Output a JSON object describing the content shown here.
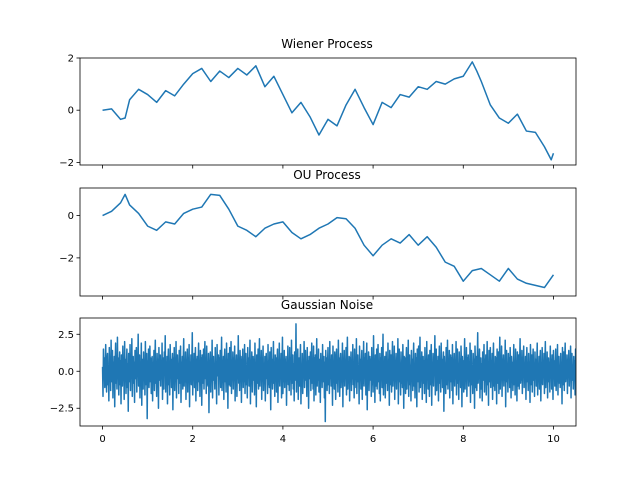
{
  "chart_data": [
    {
      "type": "line",
      "title": "Wiener Process",
      "xlabel": "",
      "ylabel": "",
      "xlim": [
        -0.5,
        10.5
      ],
      "ylim": [
        -2.1,
        2.0
      ],
      "xticks": [
        0,
        2,
        4,
        6,
        8,
        10
      ],
      "yticks": [
        -2,
        0,
        2
      ],
      "ytick_labels": [
        "−2",
        "0",
        "2"
      ],
      "show_xtick_labels": false,
      "grid": false,
      "color": "#1f77b4",
      "x": [
        0,
        0.2,
        0.4,
        0.5,
        0.6,
        0.8,
        1.0,
        1.2,
        1.4,
        1.6,
        1.8,
        2.0,
        2.2,
        2.4,
        2.6,
        2.8,
        3.0,
        3.2,
        3.4,
        3.6,
        3.8,
        4.0,
        4.2,
        4.4,
        4.6,
        4.8,
        5.0,
        5.2,
        5.4,
        5.6,
        5.8,
        6.0,
        6.2,
        6.4,
        6.6,
        6.8,
        7.0,
        7.2,
        7.4,
        7.6,
        7.8,
        8.0,
        8.2,
        8.3,
        8.4,
        8.6,
        8.8,
        9.0,
        9.2,
        9.4,
        9.6,
        9.8,
        9.95,
        10.0
      ],
      "y": [
        0.0,
        0.05,
        -0.35,
        -0.3,
        0.4,
        0.8,
        0.6,
        0.3,
        0.75,
        0.55,
        1.0,
        1.4,
        1.6,
        1.1,
        1.5,
        1.25,
        1.6,
        1.35,
        1.7,
        0.9,
        1.3,
        0.6,
        -0.1,
        0.3,
        -0.25,
        -0.95,
        -0.35,
        -0.6,
        0.2,
        0.8,
        0.1,
        -0.55,
        0.3,
        0.1,
        0.6,
        0.5,
        0.9,
        0.8,
        1.1,
        1.0,
        1.2,
        1.3,
        1.85,
        1.5,
        1.1,
        0.2,
        -0.3,
        -0.5,
        -0.15,
        -0.8,
        -0.85,
        -1.4,
        -1.9,
        -1.65
      ]
    },
    {
      "type": "line",
      "title": "OU Process",
      "xlabel": "",
      "ylabel": "",
      "xlim": [
        -0.5,
        10.5
      ],
      "ylim": [
        -3.8,
        1.3
      ],
      "xticks": [
        0,
        2,
        4,
        6,
        8,
        10
      ],
      "yticks": [
        -2,
        0
      ],
      "ytick_labels": [
        "−2",
        "0"
      ],
      "show_xtick_labels": false,
      "grid": false,
      "color": "#1f77b4",
      "x": [
        0,
        0.2,
        0.4,
        0.5,
        0.6,
        0.8,
        1.0,
        1.2,
        1.4,
        1.6,
        1.8,
        2.0,
        2.2,
        2.4,
        2.6,
        2.8,
        3.0,
        3.2,
        3.4,
        3.6,
        3.8,
        4.0,
        4.2,
        4.4,
        4.6,
        4.8,
        5.0,
        5.2,
        5.4,
        5.6,
        5.8,
        6.0,
        6.2,
        6.4,
        6.6,
        6.8,
        7.0,
        7.2,
        7.4,
        7.6,
        7.8,
        8.0,
        8.2,
        8.4,
        8.6,
        8.8,
        9.0,
        9.2,
        9.4,
        9.6,
        9.8,
        10.0
      ],
      "y": [
        0.0,
        0.2,
        0.6,
        1.0,
        0.5,
        0.1,
        -0.5,
        -0.7,
        -0.3,
        -0.4,
        0.1,
        0.3,
        0.4,
        1.0,
        0.95,
        0.3,
        -0.5,
        -0.7,
        -1.0,
        -0.6,
        -0.4,
        -0.3,
        -0.8,
        -1.1,
        -0.9,
        -0.6,
        -0.4,
        -0.1,
        -0.15,
        -0.6,
        -1.4,
        -1.9,
        -1.4,
        -1.1,
        -1.3,
        -0.9,
        -1.4,
        -1.0,
        -1.5,
        -2.2,
        -2.4,
        -3.1,
        -2.6,
        -2.5,
        -2.8,
        -3.1,
        -2.5,
        -3.0,
        -3.2,
        -3.3,
        -3.4,
        -2.8
      ]
    },
    {
      "type": "line",
      "title": "Gaussian Noise",
      "xlabel": "",
      "ylabel": "",
      "xlim": [
        -0.5,
        10.5
      ],
      "ylim": [
        -3.7,
        3.6
      ],
      "xticks": [
        0,
        2,
        4,
        6,
        8,
        10
      ],
      "xtick_labels": [
        "0",
        "2",
        "4",
        "6",
        "8",
        "10"
      ],
      "yticks": [
        -2.5,
        0.0,
        2.5
      ],
      "ytick_labels": [
        "−2.5",
        "0.0",
        "2.5"
      ],
      "show_xtick_labels": true,
      "grid": false,
      "color": "#1f77b4",
      "x_start": 0,
      "x_step": 0.01,
      "y": [
        0.3,
        -1.7,
        1.5,
        -0.4,
        0.9,
        -1.1,
        0.2,
        1.8,
        -0.6,
        -1.4,
        0.7,
        1.2,
        -0.9,
        0.4,
        -2.0,
        1.6,
        -0.2,
        0.8,
        -1.3,
        2.1,
        -0.7,
        0.1,
        1.4,
        -1.8,
        0.6,
        -0.3,
        1.0,
        -2.4,
        0.5,
        1.9,
        -0.8,
        0.3,
        -1.2,
        2.3,
        -0.5,
        0.9,
        -1.6,
        0.2,
        1.3,
        -0.9,
        0.7,
        -2.2,
        1.1,
        0.4,
        -1.0,
        1.7,
        -0.4,
        0.6,
        -1.9,
        2.0,
        -0.6,
        0.8,
        -1.5,
        0.3,
        1.5,
        -1.1,
        0.5,
        -2.7,
        1.2,
        0.1,
        -0.7,
        1.8,
        -1.3,
        0.9,
        -0.2,
        2.2,
        -1.7,
        0.4,
        1.0,
        -0.8,
        0.6,
        -2.1,
        1.4,
        -0.5,
        0.2,
        1.6,
        -1.4,
        0.7,
        -0.3,
        2.5,
        -1.0,
        0.3,
        1.1,
        -1.8,
        0.5,
        -0.6,
        1.9,
        -2.3,
        0.8,
        0.1,
        -1.2,
        1.3,
        -0.4,
        0.6,
        -1.6,
        2.0,
        -0.9,
        0.4,
        1.2,
        -3.2,
        0.7,
        -0.2,
        1.5,
        -1.1,
        0.3,
        1.7,
        -0.7,
        0.9,
        -1.5,
        0.2,
        1.0,
        -2.0,
        0.6,
        -0.4,
        1.4,
        -1.3,
        0.5,
        2.1,
        -0.8,
        0.1,
        -1.7,
        1.2,
        -0.3,
        0.8,
        -2.5,
        1.6,
        -0.6,
        0.4,
        1.1,
        -1.0,
        0.7,
        -0.5,
        1.9,
        -1.9,
        0.3,
        0.9,
        -1.2,
        1.3,
        -0.2,
        2.4,
        -1.4,
        0.6,
        -0.7,
        1.0,
        -2.2,
        0.5,
        1.5,
        -0.9,
        0.2,
        -1.6,
        1.8,
        -0.4,
        0.8,
        -1.1,
        0.4,
        1.2,
        -2.6,
        0.9,
        -0.1,
        1.6,
        -1.3,
        0.3,
        -0.6,
        2.0,
        -1.8,
        0.7,
        1.1,
        -0.5,
        0.5,
        -1.5,
        1.4,
        -0.8,
        0.2,
        1.7,
        -2.1,
        0.6,
        -0.3,
        1.0,
        -1.2,
        0.8,
        2.2,
        -1.0,
        0.4,
        -0.7,
        1.3,
        -1.9,
        0.5,
        0.1,
        1.5,
        -1.4,
        0.9,
        -0.2,
        1.8,
        -2.4,
        0.6,
        -0.5,
        1.1,
        -0.9,
        0.3,
        2.6,
        -1.6,
        0.7,
        -0.4,
        1.2,
        -1.1,
        0.4,
        1.6,
        -2.0,
        0.8,
        -0.6,
        1.0,
        -1.3,
        0.2,
        1.9,
        -0.7,
        0.5,
        -1.7,
        1.4,
        -0.3,
        0.9,
        -2.3,
        1.1,
        0.1,
        -0.8,
        1.5,
        -1.2,
        0.6,
        2.0,
        -0.5,
        0.3,
        -1.5,
        1.7,
        -0.9,
        0.4,
        -1.0,
        1.2,
        -2.8,
        0.7,
        0.2,
        1.3,
        -1.4,
        0.5,
        -0.4,
        2.1,
        -1.8,
        0.8,
        1.0,
        -0.6,
        0.3,
        -1.2,
        1.6,
        -0.8,
        0.6,
        -2.2,
        1.8,
        -0.3,
        0.4,
        1.1,
        -1.6,
        0.9,
        -0.5,
        1.4,
        -1.1,
        0.2,
        2.3,
        -1.3,
        0.7,
        -0.2,
        1.0,
        -1.9,
        0.5,
        1.5,
        -0.7,
        0.1,
        -1.4,
        1.9,
        -0.6,
        0.8,
        -2.5,
        1.2,
        0.3,
        -0.9,
        1.6,
        -1.0,
        0.4,
        2.0,
        -1.5,
        0.6,
        -0.4,
        1.3,
        -1.2,
        0.9,
        -0.3,
        1.7,
        -2.0,
        0.5,
        0.2,
        1.1,
        -1.7,
        0.7,
        -0.5,
        2.4,
        -0.8,
        0.3,
        -1.3,
        1.4,
        -0.6,
        1.0,
        -2.1,
        0.8,
        0.1,
        1.5,
        -1.1,
        0.4,
        -0.7,
        1.8,
        -1.5,
        0.6,
        1.2,
        -0.9,
        0.2,
        -1.8,
        1.6,
        -0.4,
        0.9,
        -1.0,
        0.5,
        2.1,
        -2.2,
        0.7,
        -0.3,
        1.3,
        -1.4,
        0.3,
        1.0,
        -0.6,
        0.8,
        -1.6,
        1.9,
        -0.5,
        0.4,
        -2.4,
        1.1,
        0.6,
        -0.8,
        1.5,
        -1.2,
        0.2,
        2.2,
        -1.0,
        0.5,
        -0.2,
        1.4,
        -1.9,
        0.9,
        0.1,
        1.7,
        -1.3,
        0.4,
        -0.7,
        1.0,
        -2.0,
        0.6,
        1.2,
        -0.5,
        0.3,
        -1.5,
        1.8,
        -0.9,
        0.7,
        -1.1,
        1.3,
        0.2,
        -2.6,
        1.6,
        -0.4,
        0.8,
        -1.2,
        0.5,
        2.0,
        -0.8,
        0.1,
        -1.7,
        1.1,
        -0.3,
        0.9,
        -1.4,
        0.6,
        1.5,
        -2.1,
        0.4,
        -0.6,
        1.9,
        -1.0,
        0.7,
        -0.2,
        1.2,
        -1.8,
        0.3,
        2.3,
        -1.5,
        0.5,
        -0.7,
        1.4,
        -1.1,
        0.8,
        0.2,
        1.0,
        -2.3,
        0.6,
        -0.4,
        1.7,
        -0.9,
        0.4,
        -1.3,
        1.6,
        -0.5,
        0.9,
        -1.6,
        2.1,
        -0.8,
        0.3,
        1.1,
        -1.2,
        0.5,
        -2.0,
        1.3,
        0.1,
        -0.6,
        3.2,
        -1.4,
        0.7,
        -0.3,
        1.5,
        -1.9,
        0.4,
        0.9,
        -1.0,
        0.6,
        1.8,
        -2.2,
        0.2,
        -0.7,
        1.2,
        -1.5,
        0.8,
        -0.4,
        2.0,
        -1.1,
        0.5,
        1.4,
        -0.6,
        0.3,
        -1.7,
        1.6,
        -0.9,
        0.7,
        -2.5,
        1.0,
        0.1,
        -0.5,
        1.3,
        -1.3,
        0.6,
        1.9,
        -0.8,
        0.4,
        -1.2,
        1.7,
        -2.0,
        0.9,
        -0.3,
        1.1,
        -1.6,
        0.2,
        2.2,
        -1.0,
        0.5,
        -0.6,
        1.5,
        -1.4,
        0.3,
        0.8,
        -2.1,
        1.2,
        -0.4,
        0.7,
        -1.1,
        1.8,
        -0.7,
        0.4,
        1.0,
        -1.8,
        0.6,
        -3.4,
        1.4,
        -0.2,
        0.9,
        -1.3,
        0.5,
        1.6,
        -0.9,
        0.3,
        -1.5,
        2.0,
        -0.5,
        0.8,
        -1.0,
        1.1,
        0.2,
        -2.3,
        1.7,
        -0.6,
        0.4,
        -1.2,
        1.3,
        0.7,
        -1.9,
        0.5,
        1.5,
        -0.8,
        0.1,
        -1.4,
        2.1,
        -0.3,
        0.9,
        -1.7,
        0.6,
        1.2,
        -1.1,
        0.3,
        -0.7,
        1.9,
        -2.4,
        0.8,
        0.2,
        1.4,
        -1.0,
        0.5,
        -0.4,
        1.6,
        -1.6,
        0.7,
        2.3,
        -1.2,
        0.4,
        -0.6,
        1.0,
        -2.0,
        0.9,
        0.1,
        1.3,
        -1.3,
        0.6,
        -0.5,
        1.8,
        -0.9,
        0.3,
        -1.8,
        1.5,
        -0.2,
        0.7,
        -1.1,
        2.2,
        -1.5,
        0.5,
        1.1,
        -0.7,
        0.4,
        -2.2,
        1.7,
        -0.4,
        0.8,
        -1.2,
        0.6,
        1.4,
        -1.9,
        0.2,
        -0.8,
        2.0,
        -1.0,
        0.9,
        -0.3,
        1.2,
        -1.6,
        0.5,
        1.9,
        -2.6,
        0.7,
        -0.5,
        1.3,
        -1.3,
        0.3,
        1.0,
        -0.6,
        0.8,
        -1.7,
        1.6,
        -0.9,
        0.4,
        -1.4,
        2.4,
        -0.2,
        0.6,
        -2.1,
        1.1,
        0.1,
        -1.0,
        1.5,
        -1.2,
        0.7,
        1.8,
        -0.7,
        0.5,
        -1.5,
        1.2,
        -2.0,
        0.9,
        -0.4,
        1.6,
        -1.1,
        0.3,
        2.5,
        -1.6,
        0.6,
        -0.3,
        1.0,
        -1.8,
        0.4,
        1.3,
        -0.8,
        0.2,
        -1.3,
        1.9,
        -0.5,
        0.8,
        -2.3,
        1.4,
        0.5,
        -0.9,
        1.1,
        -1.4,
        0.6,
        2.0,
        -1.0,
        0.3,
        -0.6,
        1.7,
        -1.9,
        0.7,
        0.1,
        1.2,
        -1.2,
        0.9,
        -0.4,
        2.2,
        -2.2,
        0.5,
        1.5,
        -0.7,
        0.4,
        -1.6,
        1.3,
        -0.8,
        0.6,
        -1.1,
        1.8,
        0.2,
        -2.5,
        1.0,
        -0.3,
        0.9,
        -1.5,
        0.5,
        1.6,
        -1.2,
        0.3,
        -0.6,
        2.1,
        -1.7,
        0.7,
        1.1,
        -0.9,
        0.4,
        -2.0,
        1.4,
        -0.5,
        0.8,
        -1.3,
        0.6,
        1.9,
        -1.0,
        0.2,
        -1.8,
        1.2,
        -0.4,
        0.9,
        -2.4,
        1.5,
        0.1,
        -0.7,
        1.7,
        -1.4,
        0.5,
        2.3,
        -1.1,
        0.6,
        -0.3,
        1.3,
        -1.9,
        0.4,
        1.0,
        -0.8,
        0.7,
        -1.5,
        1.6,
        -0.6,
        0.3,
        -2.1,
        2.0,
        -0.5,
        0.8,
        -1.2,
        1.1,
        0.2,
        -1.7,
        1.4,
        -0.9,
        0.6,
        1.8,
        -2.3,
        0.5,
        -0.4,
        1.2,
        -1.0,
        0.9,
        -0.2,
        2.4,
        -1.6,
        0.3,
        1.5,
        -1.3,
        0.7,
        -0.6,
        1.0,
        -2.0,
        0.4,
        1.7,
        -0.8,
        0.2,
        -1.4,
        1.9,
        -0.5,
        0.8,
        -1.1,
        0.6,
        1.3,
        -2.7,
        1.0,
        -0.3,
        0.5,
        -1.5,
        1.6,
        0.1,
        -0.9,
        2.1,
        -1.2,
        0.7,
        -0.4,
        1.4,
        -1.8,
        0.3,
        1.1,
        -0.7,
        0.9,
        -1.3,
        1.8,
        -2.2,
        0.5,
        0.2,
        1.2,
        -1.0,
        0.6,
        -0.5,
        2.0,
        -1.6,
        0.4,
        1.5,
        -0.8,
        0.3,
        -1.9,
        1.3,
        -0.2,
        0.8,
        -1.1,
        1.7,
        0.5,
        -2.4,
        1.0,
        -0.6,
        0.7,
        -1.4,
        0.4,
        2.2,
        -1.2,
        0.2,
        -0.4,
        1.6,
        -1.7,
        0.9,
        0.1,
        1.1,
        -1.0,
        0.6,
        -0.7,
        1.9,
        -2.1,
        0.5,
        1.4,
        -0.9,
        0.3,
        -1.5,
        1.2,
        -0.3,
        0.8,
        -2.5,
        1.7,
        0.4,
        -1.1,
        1.0,
        -1.3,
        0.6,
        2.6,
        -0.8,
        0.2,
        -0.5,
        1.5,
        -1.8,
        0.7,
        0.9,
        -1.2,
        0.5,
        -2.0,
        1.3,
        -0.6,
        0.4,
        1.8,
        -1.4,
        0.8,
        -0.2,
        1.1,
        -1.6,
        0.3,
        2.0,
        -0.9,
        0.6,
        -2.3,
        1.4,
        0.1,
        -0.7,
        1.6,
        -1.1,
        0.7,
        -0.4,
        1.2,
        -1.9,
        0.5,
        1.9,
        -1.0,
        0.3,
        -1.3,
        1.0,
        -0.5,
        0.9,
        -2.2,
        1.5,
        0.2,
        -0.8,
        1.3,
        -1.5,
        0.4,
        2.3,
        -1.2,
        0.6,
        -0.3,
        1.7,
        -1.7,
        0.8,
        0.1,
        1.1,
        -1.0,
        0.5,
        -0.6,
        2.1,
        -2.4,
        0.7,
        1.4,
        -0.7,
        0.3,
        -1.4,
        1.2,
        -0.4,
        0.9,
        -1.1,
        1.6,
        0.2,
        -1.8,
        1.0,
        -0.5,
        0.6,
        -1.3,
        0.4,
        1.8,
        -0.9,
        0.3,
        -1.6,
        1.5,
        -0.2,
        0.7,
        -2.0,
        1.3,
        0.5,
        -1.0,
        1.1,
        -1.2,
        0.6,
        2.2,
        -0.8,
        0.2,
        -0.6,
        1.4,
        -1.5,
        0.8,
        0.1,
        1.7,
        -1.1,
        0.4,
        -0.5,
        1.0,
        -1.9,
        0.5,
        1.6,
        -0.7,
        0.3,
        -1.3,
        1.2,
        -0.4,
        0.6,
        -2.1,
        1.8,
        0.2,
        -0.9,
        1.1,
        -1.4,
        0.7,
        1.5,
        -0.6,
        0.3,
        -1.7,
        1.3,
        -0.3,
        0.8,
        -1.0,
        0.5,
        1.9,
        -1.6,
        0.4,
        -0.5,
        1.0,
        -1.2,
        0.6,
        1.4,
        -2.0,
        0.2,
        -0.8,
        1.6,
        -0.9,
        0.7,
        -0.3,
        1.2,
        -1.5,
        0.4,
        2.0,
        -1.1,
        0.5,
        -0.6,
        1.3,
        -1.8,
        0.3,
        0.9,
        -0.7,
        0.6,
        -1.4,
        1.7,
        -0.4,
        0.8,
        -1.2,
        1.1,
        0.1,
        -1.9,
        1.4,
        -0.5,
        0.7,
        -1.0,
        0.4,
        1.5,
        -1.3,
        0.2,
        -0.6,
        1.8,
        -1.6,
        0.6,
        1.0,
        -0.8,
        0.3,
        -1.1,
        1.2,
        -0.2,
        0.5,
        -2.2,
        1.6,
        0.4,
        -0.9,
        1.3,
        -1.3,
        0.7,
        1.9,
        -0.7,
        0.3,
        -0.5,
        1.1,
        -1.5,
        0.8,
        0.2,
        1.4,
        -1.0,
        0.5,
        -0.4,
        1.7,
        -1.8,
        0.6,
        1.2,
        -0.6,
        0.4,
        -1.2,
        1.0,
        -0.3,
        0.7,
        -1.6,
        1.5,
        0.1,
        -0.8,
        1.2,
        -1.1,
        0.6,
        1.8,
        -0.9,
        0.3,
        -1.4,
        1.3,
        -0.5,
        0.5,
        -1.0,
        0.8,
        1.6,
        -1.9,
        0.4,
        -0.7,
        1.1,
        -1.2,
        0.6,
        0.2,
        1.4,
        -0.5,
        0.3,
        -1.3,
        1.0,
        -0.4,
        0.7,
        -0.9,
        0.5,
        1.2,
        -1.6,
        0.3,
        -0.6,
        1.5,
        -0.8,
        0.4,
        -0.2,
        1.1,
        -1.1,
        0.6,
        1.3,
        -0.7,
        0.2,
        -1.9,
        0.9,
        -0.3,
        0.5,
        -1.0,
        1.2,
        0.1,
        -0.6,
        0.8,
        -0.4,
        0.3
      ]
    }
  ]
}
